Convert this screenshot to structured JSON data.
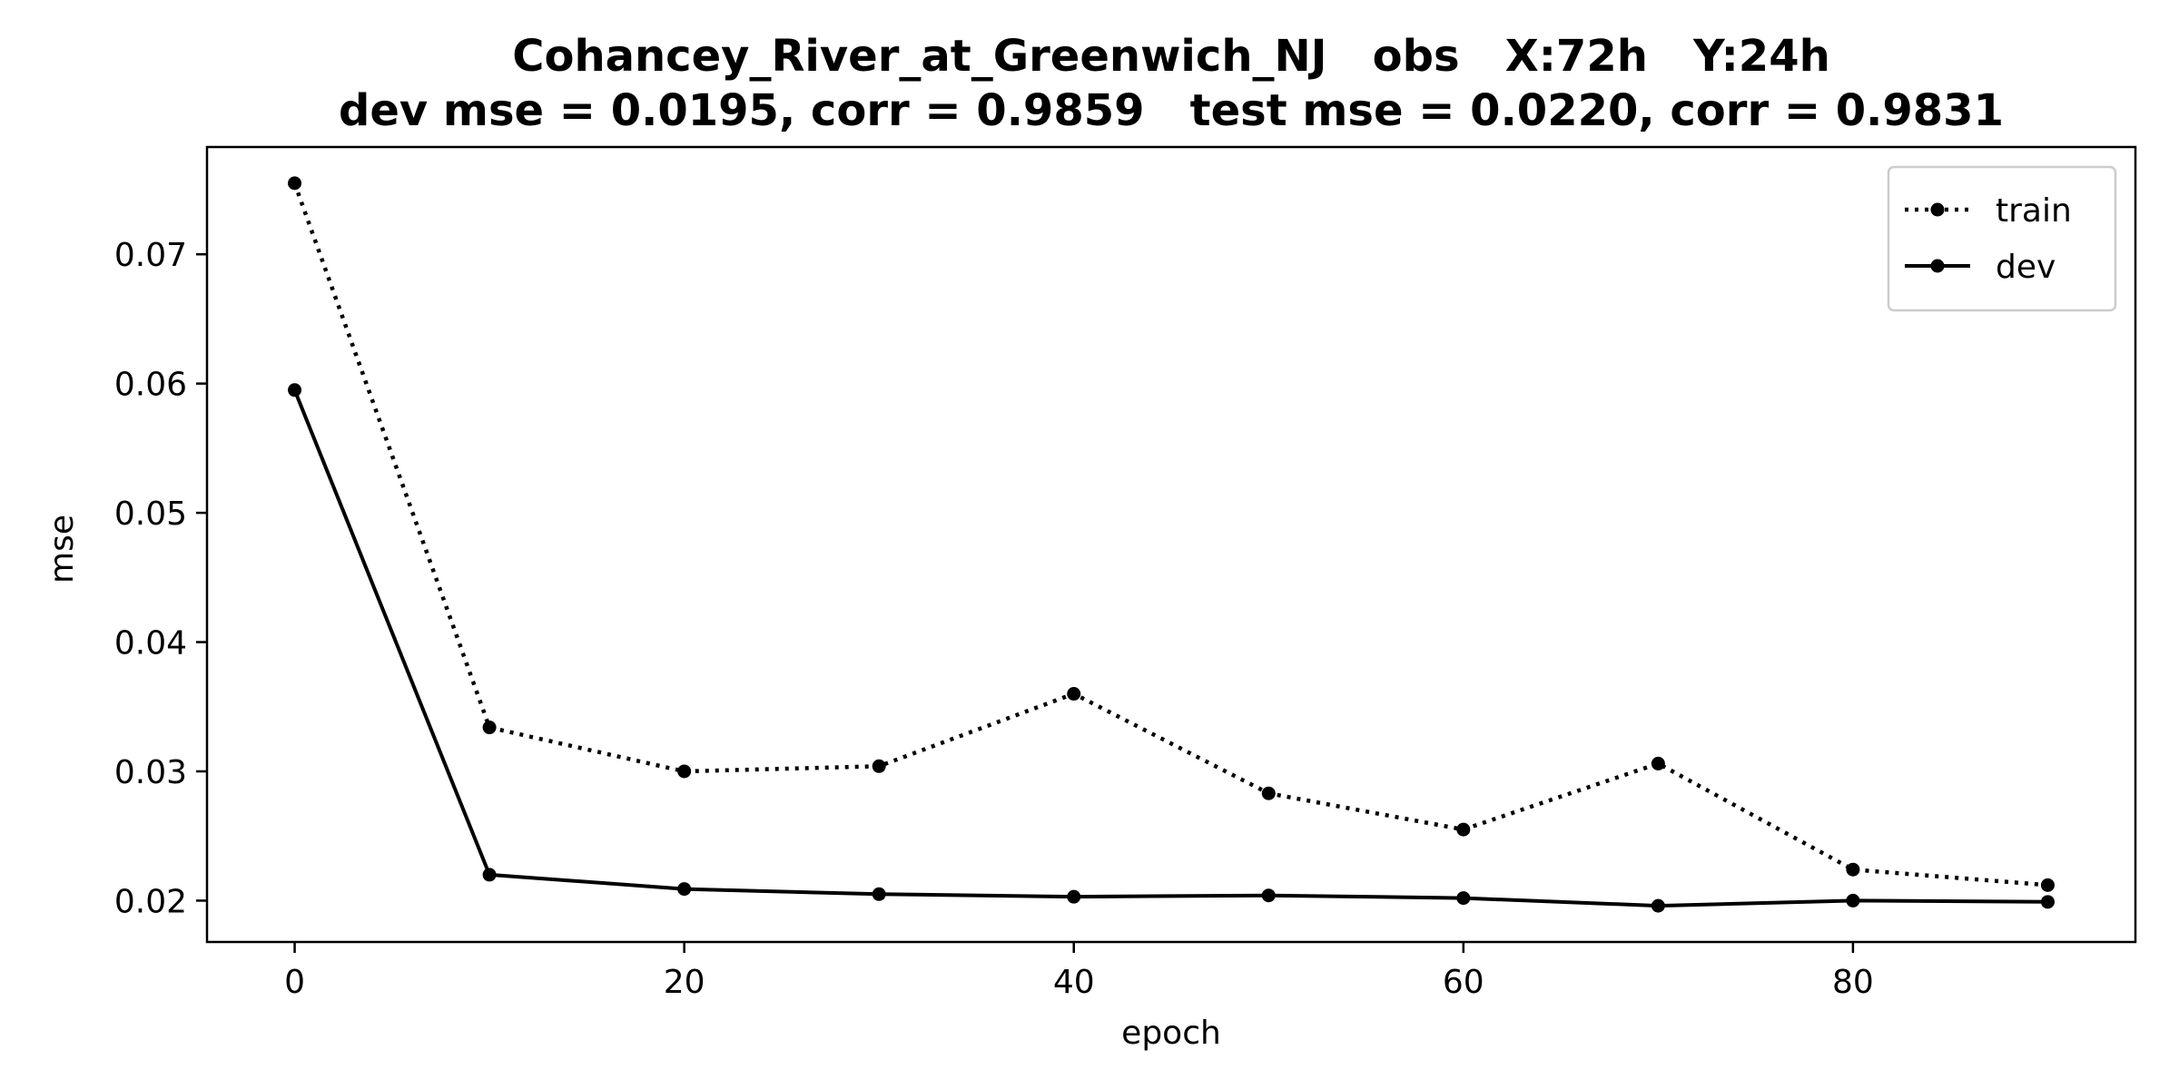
{
  "chart_data": {
    "type": "line",
    "title": "Cohancey_River_at_Greenwich_NJ   obs   X:72h   Y:24h",
    "subtitle": "dev mse = 0.0195, corr = 0.9859   test mse = 0.0220, corr = 0.9831",
    "xlabel": "epoch",
    "ylabel": "mse",
    "xlim": [
      -4.5,
      94.5
    ],
    "ylim": [
      0.0168,
      0.0783
    ],
    "xticks": [
      0,
      20,
      40,
      60,
      80
    ],
    "yticks": [
      0.02,
      0.03,
      0.04,
      0.05,
      0.06,
      0.07
    ],
    "legend_position": "top-right",
    "grid": false,
    "x": [
      0,
      10,
      20,
      30,
      40,
      50,
      60,
      70,
      80,
      90
    ],
    "series": [
      {
        "name": "train",
        "style": "dotted",
        "color": "#000000",
        "values": [
          0.0755,
          0.0334,
          0.03,
          0.0304,
          0.036,
          0.0283,
          0.0255,
          0.0306,
          0.0224,
          0.0212
        ]
      },
      {
        "name": "dev",
        "style": "solid",
        "color": "#000000",
        "values": [
          0.0595,
          0.022,
          0.0209,
          0.0205,
          0.0203,
          0.0204,
          0.0202,
          0.0196,
          0.02,
          0.0199
        ]
      }
    ]
  }
}
